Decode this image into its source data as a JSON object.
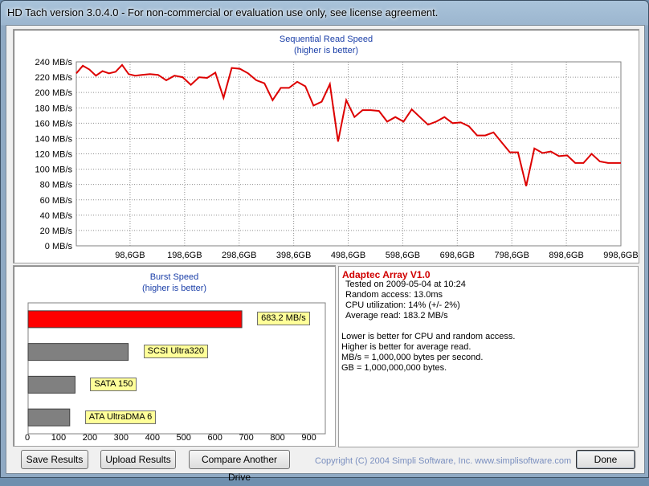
{
  "window": {
    "title": "HD Tach version 3.0.4.0  - For non-commercial or evaluation use only, see license agreement."
  },
  "read_chart": {
    "title": "Sequential Read Speed",
    "subtitle": "(higher is better)",
    "y_ticks": [
      "240 MB/s",
      "220 MB/s",
      "200 MB/s",
      "180 MB/s",
      "160 MB/s",
      "140 MB/s",
      "120 MB/s",
      "100 MB/s",
      "80 MB/s",
      "60 MB/s",
      "40 MB/s",
      "20 MB/s",
      "0 MB/s"
    ],
    "x_ticks": [
      "98,6GB",
      "198,6GB",
      "298,6GB",
      "398,6GB",
      "498,6GB",
      "598,6GB",
      "698,6GB",
      "798,6GB",
      "898,6GB",
      "998,6GB"
    ]
  },
  "chart_data": [
    {
      "type": "line",
      "title": "Sequential Read Speed",
      "subtitle": "(higher is better)",
      "ylabel": "",
      "xlabel": "",
      "ylim": [
        0,
        240
      ],
      "xlim": [
        0,
        998.6
      ],
      "grid": true,
      "color": "#dd0000",
      "x": [
        0,
        12,
        24,
        36,
        48,
        60,
        72,
        84,
        96,
        108,
        120,
        135,
        150,
        165,
        180,
        195,
        210,
        225,
        240,
        255,
        270,
        285,
        300,
        315,
        330,
        345,
        360,
        375,
        390,
        405,
        420,
        435,
        450,
        465,
        480,
        495,
        510,
        525,
        540,
        555,
        570,
        585,
        600,
        615,
        630,
        645,
        660,
        675,
        690,
        705,
        720,
        735,
        750,
        765,
        780,
        795,
        810,
        825,
        840,
        855,
        870,
        885,
        900,
        915,
        930,
        945,
        960,
        975,
        990,
        998.6
      ],
      "y": [
        225,
        235,
        230,
        222,
        228,
        225,
        227,
        236,
        224,
        222,
        223,
        224,
        223,
        216,
        222,
        220,
        210,
        220,
        219,
        226,
        193,
        232,
        231,
        225,
        216,
        212,
        190,
        206,
        206,
        214,
        208,
        183,
        188,
        211,
        136,
        190,
        168,
        177,
        177,
        176,
        162,
        168,
        162,
        178,
        168,
        158,
        162,
        168,
        160,
        161,
        156,
        144,
        144,
        148,
        135,
        122,
        122,
        78,
        127,
        121,
        123,
        117,
        118,
        108,
        108,
        120,
        110,
        108,
        108,
        108
      ],
      "x_tick_labels": [
        "98,6GB",
        "198,6GB",
        "298,6GB",
        "398,6GB",
        "498,6GB",
        "598,6GB",
        "698,6GB",
        "798,6GB",
        "898,6GB",
        "998,6GB"
      ]
    },
    {
      "type": "bar",
      "title": "Burst Speed",
      "subtitle": "(higher is better)",
      "orientation": "horizontal",
      "xlim": [
        0,
        950
      ],
      "x_ticks": [
        "0",
        "100",
        "200",
        "300",
        "400",
        "500",
        "600",
        "700",
        "800",
        "900"
      ],
      "categories": [
        "683.2 MB/s",
        "SCSI Ultra320",
        "SATA 150",
        "ATA UltraDMA 6"
      ],
      "values": [
        683.2,
        320,
        150,
        133
      ],
      "colors": [
        "#ff0000",
        "#808080",
        "#808080",
        "#808080"
      ]
    }
  ],
  "info": {
    "drive_name": "Adaptec Array V1.0",
    "tested_on": "Tested on 2009-05-04 at 10:24",
    "random_access": "Random access: 13.0ms",
    "cpu_utilization": "CPU utilization: 14% (+/- 2%)",
    "average_read": "Average read: 183.2 MB/s",
    "note1": "Lower is better for CPU and random access.",
    "note2": "Higher is better for average read.",
    "note3": "MB/s = 1,000,000 bytes per second.",
    "note4": "GB = 1,000,000,000 bytes."
  },
  "buttons": {
    "save": "Save Results",
    "upload": "Upload Results",
    "compare": "Compare Another Drive",
    "done": "Done"
  },
  "copyright": "Copyright (C) 2004 Simpli Software, Inc. www.simplisoftware.com"
}
